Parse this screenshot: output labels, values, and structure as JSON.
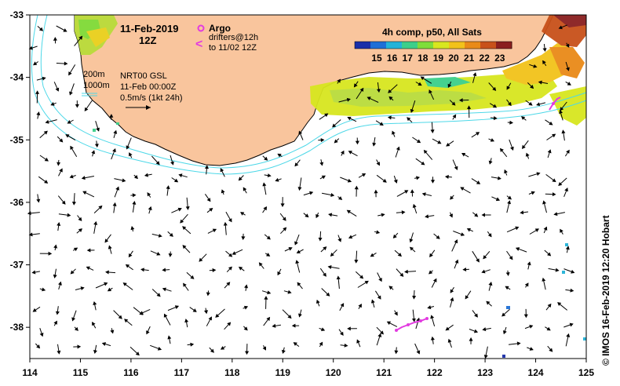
{
  "title": {
    "date": "11-Feb-2019",
    "time": "12Z"
  },
  "legend": {
    "argo_label": "Argo",
    "drifters_line1": "drifters@12h",
    "drifters_line2": "to 11/02 12Z"
  },
  "sst": {
    "title": "4h comp, p50, All Sats",
    "ticks": [
      "15",
      "16",
      "17",
      "18",
      "19",
      "20",
      "21",
      "22",
      "23"
    ],
    "colors": [
      "#1a2ea8",
      "#1f6fd6",
      "#23b3d8",
      "#3ccf8a",
      "#7fdd3a",
      "#d8e61f",
      "#f2c21a",
      "#e98a18",
      "#c8511a",
      "#8a1f1f"
    ]
  },
  "depth_legend": {
    "c200": "200m",
    "c1000": "1000m"
  },
  "product": {
    "line1": "NRT00 GSL",
    "line2": "11-Feb 00:00Z",
    "line3": "0.5m/s (1kt 24h)"
  },
  "axes": {
    "lon_ticks": [
      "114",
      "115",
      "116",
      "117",
      "118",
      "119",
      "120",
      "121",
      "122",
      "123",
      "124",
      "125"
    ],
    "lat_ticks": [
      "-33",
      "-34",
      "-35",
      "-36",
      "-37",
      "-38"
    ],
    "lon_range": [
      114,
      125
    ],
    "lat_range": [
      -38.5,
      -33
    ]
  },
  "credit": "© IMOS 16-Feb-2019 12:20 Hobart",
  "colors": {
    "land": "#f9c59d",
    "coast": "#000000",
    "contour": "#4dd8e8",
    "argo": "#e23be0",
    "drifter": "#e23be0"
  }
}
